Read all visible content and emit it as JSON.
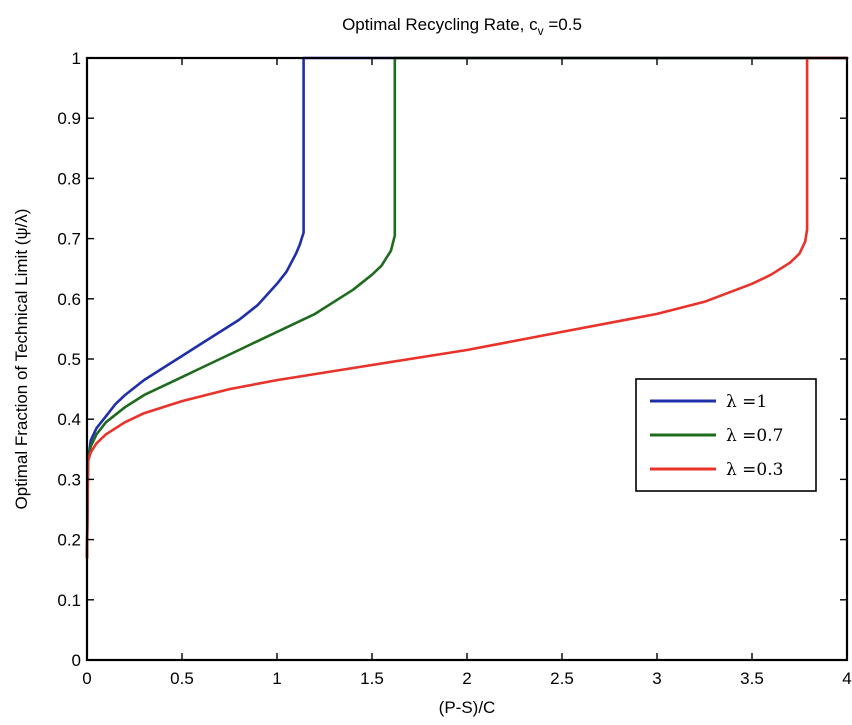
{
  "chart_data": {
    "type": "line",
    "title": "Optimal Recycling Rate, c",
    "title_subscript": "v",
    "title_suffix": " =0.5",
    "xlabel": "(P-S)/C",
    "ylabel": "Optimal Fraction of Technical Limit (ψ/λ)",
    "xlim": [
      0,
      4
    ],
    "ylim": [
      0,
      1
    ],
    "xticks": [
      0,
      0.5,
      1,
      1.5,
      2,
      2.5,
      3,
      3.5,
      4
    ],
    "xtick_labels": [
      "0",
      "0.5",
      "1",
      "1.5",
      "2",
      "2.5",
      "3",
      "3.5",
      "4"
    ],
    "yticks": [
      0,
      0.1,
      0.2,
      0.3,
      0.4,
      0.5,
      0.6,
      0.7,
      0.8,
      0.9,
      1
    ],
    "ytick_labels": [
      "0",
      "0.1",
      "0.2",
      "0.3",
      "0.4",
      "0.5",
      "0.6",
      "0.7",
      "0.8",
      "0.9",
      "1"
    ],
    "grid": false,
    "legend_position": "center-right",
    "series": [
      {
        "name": "λ =1",
        "color": "#1f2fa8",
        "x": [
          0,
          0.005,
          0.02,
          0.05,
          0.1,
          0.15,
          0.2,
          0.3,
          0.4,
          0.5,
          0.6,
          0.7,
          0.8,
          0.9,
          1.0,
          1.05,
          1.1,
          1.12,
          1.135,
          1.14,
          1.14,
          1.14,
          1.15,
          4.0
        ],
        "y": [
          0.17,
          0.33,
          0.365,
          0.385,
          0.405,
          0.425,
          0.44,
          0.465,
          0.485,
          0.505,
          0.525,
          0.545,
          0.565,
          0.59,
          0.625,
          0.645,
          0.675,
          0.69,
          0.705,
          0.71,
          0.86,
          1.0,
          1.0,
          1.0
        ]
      },
      {
        "name": "λ =0.7",
        "color": "#1e6b1e",
        "x": [
          0,
          0.005,
          0.02,
          0.05,
          0.1,
          0.2,
          0.3,
          0.4,
          0.5,
          0.6,
          0.7,
          0.8,
          0.9,
          1.0,
          1.1,
          1.2,
          1.3,
          1.4,
          1.5,
          1.55,
          1.6,
          1.62,
          1.62,
          1.62,
          1.63,
          4.0
        ],
        "y": [
          0.17,
          0.33,
          0.355,
          0.375,
          0.395,
          0.42,
          0.44,
          0.455,
          0.47,
          0.485,
          0.5,
          0.515,
          0.53,
          0.545,
          0.56,
          0.575,
          0.595,
          0.615,
          0.64,
          0.655,
          0.68,
          0.705,
          0.86,
          1.0,
          1.0,
          1.0
        ]
      },
      {
        "name": "λ =0.3",
        "color": "#e8322a",
        "x": [
          0,
          0.005,
          0.02,
          0.05,
          0.1,
          0.2,
          0.3,
          0.5,
          0.75,
          1.0,
          1.5,
          2.0,
          2.5,
          3.0,
          3.25,
          3.5,
          3.6,
          3.7,
          3.75,
          3.78,
          3.79,
          3.79,
          3.79,
          3.8,
          4.0
        ],
        "y": [
          0.17,
          0.33,
          0.345,
          0.36,
          0.375,
          0.395,
          0.41,
          0.43,
          0.45,
          0.465,
          0.49,
          0.515,
          0.545,
          0.575,
          0.595,
          0.625,
          0.64,
          0.66,
          0.675,
          0.695,
          0.715,
          0.86,
          1.0,
          1.0,
          1.0
        ]
      }
    ]
  }
}
